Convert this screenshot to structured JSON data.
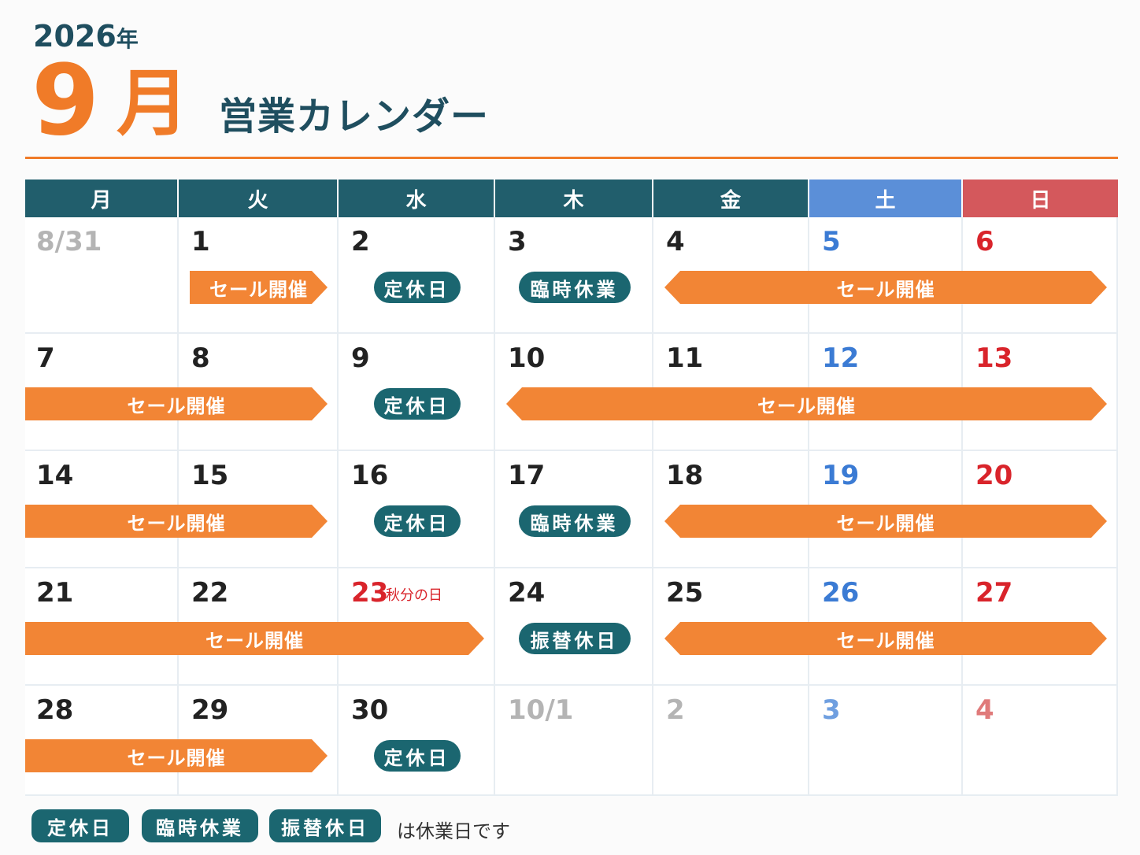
{
  "header": {
    "year": "2026",
    "year_suffix": "年",
    "month_num": "9",
    "month_kanji": "月",
    "title": "営業カレンダー"
  },
  "colors": {
    "accent": "#f07b28",
    "header_weekday": "#215e6c",
    "header_sat": "#5b8fd8",
    "header_sun": "#d4585c",
    "sale": "#f28535",
    "closed": "#1b6670"
  },
  "weekdays": [
    "月",
    "火",
    "水",
    "木",
    "金",
    "土",
    "日"
  ],
  "weeks": [
    [
      {
        "label": "8/31",
        "out": true
      },
      {
        "label": "1"
      },
      {
        "label": "2"
      },
      {
        "label": "3"
      },
      {
        "label": "4"
      },
      {
        "label": "5"
      },
      {
        "label": "6"
      }
    ],
    [
      {
        "label": "7"
      },
      {
        "label": "8"
      },
      {
        "label": "9"
      },
      {
        "label": "10"
      },
      {
        "label": "11"
      },
      {
        "label": "12"
      },
      {
        "label": "13"
      }
    ],
    [
      {
        "label": "14"
      },
      {
        "label": "15"
      },
      {
        "label": "16"
      },
      {
        "label": "17"
      },
      {
        "label": "18"
      },
      {
        "label": "19"
      },
      {
        "label": "20"
      }
    ],
    [
      {
        "label": "21"
      },
      {
        "label": "22"
      },
      {
        "label": "23",
        "holiday": "秋分の日"
      },
      {
        "label": "24"
      },
      {
        "label": "25"
      },
      {
        "label": "26"
      },
      {
        "label": "27"
      }
    ],
    [
      {
        "label": "28"
      },
      {
        "label": "29"
      },
      {
        "label": "30"
      },
      {
        "label": "10/1",
        "out": true
      },
      {
        "label": "2",
        "out": true
      },
      {
        "label": "3",
        "out": true
      },
      {
        "label": "4",
        "out": true
      }
    ]
  ],
  "events": [
    {
      "week": 0,
      "start": 1,
      "end": 1,
      "type": "sale",
      "label": "セール開催",
      "shape": "arrow-r"
    },
    {
      "week": 0,
      "start": 2,
      "end": 2,
      "type": "closed",
      "label": "定休日"
    },
    {
      "week": 0,
      "start": 3,
      "end": 3,
      "type": "closed",
      "label": "臨時休業"
    },
    {
      "week": 0,
      "start": 4,
      "end": 6,
      "type": "sale",
      "label": "セール開催",
      "shape": "arrow-both"
    },
    {
      "week": 1,
      "start": 0,
      "end": 1,
      "type": "sale",
      "label": "セール開催",
      "shape": "arrow-r"
    },
    {
      "week": 1,
      "start": 2,
      "end": 2,
      "type": "closed",
      "label": "定休日"
    },
    {
      "week": 1,
      "start": 3,
      "end": 6,
      "type": "sale",
      "label": "セール開催",
      "shape": "arrow-both"
    },
    {
      "week": 2,
      "start": 0,
      "end": 1,
      "type": "sale",
      "label": "セール開催",
      "shape": "arrow-r"
    },
    {
      "week": 2,
      "start": 2,
      "end": 2,
      "type": "closed",
      "label": "定休日"
    },
    {
      "week": 2,
      "start": 3,
      "end": 3,
      "type": "closed",
      "label": "臨時休業"
    },
    {
      "week": 2,
      "start": 4,
      "end": 6,
      "type": "sale",
      "label": "セール開催",
      "shape": "arrow-both"
    },
    {
      "week": 3,
      "start": 0,
      "end": 2,
      "type": "sale",
      "label": "セール開催",
      "shape": "arrow-r"
    },
    {
      "week": 3,
      "start": 3,
      "end": 3,
      "type": "closed",
      "label": "振替休日"
    },
    {
      "week": 3,
      "start": 4,
      "end": 6,
      "type": "sale",
      "label": "セール開催",
      "shape": "arrow-both"
    },
    {
      "week": 4,
      "start": 0,
      "end": 1,
      "type": "sale",
      "label": "セール開催",
      "shape": "arrow-r"
    },
    {
      "week": 4,
      "start": 2,
      "end": 2,
      "type": "closed",
      "label": "定休日"
    }
  ],
  "legend": {
    "items": [
      "定休日",
      "臨時休業",
      "振替休日"
    ],
    "text": "は休業日です"
  }
}
